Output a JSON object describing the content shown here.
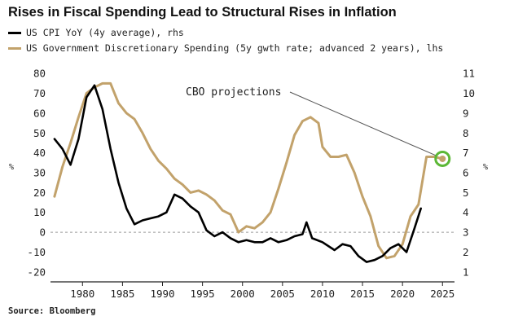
{
  "chart_data": {
    "type": "line",
    "title": "Rises in Fiscal Spending Lead to Structural Rises in Inflation",
    "source": "Source: Bloomberg",
    "left_axis": {
      "unit": "%",
      "ylim": [
        -25,
        85
      ],
      "ticks": [
        -20,
        -10,
        0,
        10,
        20,
        30,
        40,
        50,
        60,
        70,
        80
      ]
    },
    "right_axis": {
      "unit": "%",
      "ylim": [
        0.5,
        11.5
      ],
      "ticks": [
        1,
        2,
        3,
        4,
        5,
        6,
        7,
        8,
        9,
        10,
        11
      ]
    },
    "x_axis": {
      "xlim": [
        1976,
        2026.5
      ],
      "ticks": [
        1980,
        1985,
        1990,
        1995,
        2000,
        2005,
        2010,
        2015,
        2020,
        2025
      ]
    },
    "grid": false,
    "zero_line": "dashed",
    "legend_position": "top-left",
    "series": [
      {
        "name": "US CPI YoY (4y average), rhs",
        "axis": "right",
        "color": "#000000",
        "points": [
          [
            1976.5,
            7.7
          ],
          [
            1977.5,
            7.2
          ],
          [
            1978.5,
            6.4
          ],
          [
            1979.5,
            7.7
          ],
          [
            1980.5,
            9.8
          ],
          [
            1981.5,
            10.4
          ],
          [
            1982.5,
            9.2
          ],
          [
            1983.5,
            7.2
          ],
          [
            1984.5,
            5.5
          ],
          [
            1985.5,
            4.2
          ],
          [
            1986.5,
            3.4
          ],
          [
            1987.5,
            3.6
          ],
          [
            1988.5,
            3.7
          ],
          [
            1989.5,
            3.8
          ],
          [
            1990.5,
            4.0
          ],
          [
            1991.5,
            4.9
          ],
          [
            1992.5,
            4.7
          ],
          [
            1993.5,
            4.3
          ],
          [
            1994.5,
            4.0
          ],
          [
            1995.5,
            3.1
          ],
          [
            1996.5,
            2.8
          ],
          [
            1997.5,
            3.0
          ],
          [
            1998.5,
            2.7
          ],
          [
            1999.5,
            2.5
          ],
          [
            2000.5,
            2.6
          ],
          [
            2001.5,
            2.5
          ],
          [
            2002.5,
            2.5
          ],
          [
            2003.5,
            2.7
          ],
          [
            2004.5,
            2.5
          ],
          [
            2005.5,
            2.6
          ],
          [
            2006.5,
            2.8
          ],
          [
            2007.5,
            2.9
          ],
          [
            2008.0,
            3.5
          ],
          [
            2008.7,
            2.7
          ],
          [
            2010.0,
            2.5
          ],
          [
            2011.5,
            2.1
          ],
          [
            2012.5,
            2.4
          ],
          [
            2013.5,
            2.3
          ],
          [
            2014.5,
            1.8
          ],
          [
            2015.5,
            1.5
          ],
          [
            2016.5,
            1.6
          ],
          [
            2017.5,
            1.8
          ],
          [
            2018.5,
            2.2
          ],
          [
            2019.5,
            2.4
          ],
          [
            2020.5,
            2.0
          ],
          [
            2021.5,
            3.2
          ],
          [
            2022.3,
            4.2
          ]
        ]
      },
      {
        "name": "US Government Discretionary Spending (5y gwth rate; advanced 2 years), lhs",
        "axis": "left",
        "color": "#c2a26b",
        "points": [
          [
            1976.5,
            18
          ],
          [
            1977.5,
            33
          ],
          [
            1978.5,
            45
          ],
          [
            1979.5,
            58
          ],
          [
            1980.5,
            70
          ],
          [
            1981.5,
            73
          ],
          [
            1982.5,
            75
          ],
          [
            1983.5,
            75
          ],
          [
            1984.5,
            65
          ],
          [
            1985.5,
            60
          ],
          [
            1986.5,
            57
          ],
          [
            1987.5,
            50
          ],
          [
            1988.5,
            42
          ],
          [
            1989.5,
            36
          ],
          [
            1990.5,
            32
          ],
          [
            1991.5,
            27
          ],
          [
            1992.5,
            24
          ],
          [
            1993.5,
            20
          ],
          [
            1994.5,
            21
          ],
          [
            1995.5,
            19
          ],
          [
            1996.5,
            16
          ],
          [
            1997.5,
            11
          ],
          [
            1998.5,
            9
          ],
          [
            1999.5,
            0
          ],
          [
            2000.5,
            3
          ],
          [
            2001.5,
            2
          ],
          [
            2002.5,
            5
          ],
          [
            2003.5,
            10
          ],
          [
            2004.5,
            22
          ],
          [
            2005.5,
            35
          ],
          [
            2006.5,
            49
          ],
          [
            2007.5,
            56
          ],
          [
            2008.5,
            58
          ],
          [
            2009.5,
            55
          ],
          [
            2010.0,
            43
          ],
          [
            2011.0,
            38
          ],
          [
            2012.0,
            38
          ],
          [
            2013.0,
            39
          ],
          [
            2014.0,
            30
          ],
          [
            2015.0,
            18
          ],
          [
            2016.0,
            8
          ],
          [
            2017.0,
            -7
          ],
          [
            2018.0,
            -13
          ],
          [
            2019.0,
            -12
          ],
          [
            2020.0,
            -6
          ],
          [
            2021.0,
            8
          ],
          [
            2022.0,
            14
          ],
          [
            2023.0,
            38
          ],
          [
            2024.0,
            38
          ],
          [
            2025.0,
            37
          ]
        ]
      }
    ],
    "annotations": [
      {
        "text": "CBO projections",
        "target": [
          2025,
          37
        ],
        "axis": "left",
        "marker": "circle",
        "marker_color": "#5cb836"
      }
    ]
  }
}
